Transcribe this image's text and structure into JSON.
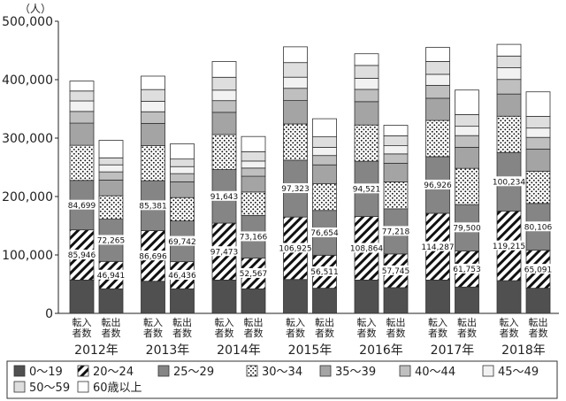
{
  "chart_data": {
    "type": "bar",
    "stacked": true,
    "unit_label": "（人）",
    "ylim": [
      0,
      500000
    ],
    "yticks": [
      "0",
      "100,000",
      "200,000",
      "300,000",
      "400,000",
      "500,000"
    ],
    "bar_labels": {
      "in": [
        "転入",
        "者数"
      ],
      "out": [
        "転出",
        "者数"
      ]
    },
    "years": [
      "2012年",
      "2013年",
      "2014年",
      "2015年",
      "2016年",
      "2017年",
      "2018年"
    ],
    "legend_position": "bottom",
    "series": [
      {
        "name": "0〜19",
        "fill": "#505050",
        "pattern": "solid"
      },
      {
        "name": "20〜24",
        "fill": "#ffffff",
        "pattern": "diagonal"
      },
      {
        "name": "25〜29",
        "fill": "#858585",
        "pattern": "solid"
      },
      {
        "name": "30〜34",
        "fill": "#ffffff",
        "pattern": "dots"
      },
      {
        "name": "35〜39",
        "fill": "#a4a4a4",
        "pattern": "solid"
      },
      {
        "name": "40〜44",
        "fill": "#bfbfbf",
        "pattern": "solid"
      },
      {
        "name": "45〜49",
        "fill": "#f2f2f2",
        "pattern": "solid"
      },
      {
        "name": "50〜59",
        "fill": "#dedede",
        "pattern": "solid"
      },
      {
        "name": "60歳以上",
        "fill": "#ffffff",
        "pattern": "solid"
      }
    ],
    "bars": [
      {
        "year": "2012年",
        "kind": "in",
        "values": [
          57000,
          85946,
          84699,
          60000,
          38000,
          20000,
          18000,
          17000,
          17000
        ],
        "labels": [
          "",
          "85,946",
          "84,699",
          "",
          "",
          "",
          "",
          "",
          ""
        ]
      },
      {
        "year": "2012年",
        "kind": "out",
        "values": [
          42000,
          46941,
          72265,
          40000,
          27000,
          14000,
          12000,
          12000,
          30000
        ],
        "labels": [
          "",
          "46,941",
          "72,265",
          "",
          "",
          "",
          "",
          "",
          ""
        ]
      },
      {
        "year": "2013年",
        "kind": "in",
        "values": [
          55000,
          86696,
          85381,
          60000,
          38000,
          20000,
          18000,
          20000,
          23000
        ],
        "labels": [
          "",
          "86,696",
          "85,381",
          "",
          "",
          "",
          "",
          "",
          ""
        ]
      },
      {
        "year": "2013年",
        "kind": "out",
        "values": [
          42000,
          46436,
          69742,
          40000,
          27000,
          14000,
          12000,
          13000,
          26000
        ],
        "labels": [
          "",
          "46,436",
          "69,742",
          "",
          "",
          "",
          "",
          "",
          ""
        ]
      },
      {
        "year": "2014年",
        "kind": "in",
        "values": [
          57000,
          97473,
          91643,
          60000,
          38000,
          20000,
          18000,
          22000,
          27000
        ],
        "labels": [
          "",
          "97,473",
          "91,643",
          "",
          "",
          "",
          "",
          "",
          ""
        ]
      },
      {
        "year": "2014年",
        "kind": "out",
        "values": [
          42000,
          52567,
          73166,
          40000,
          27000,
          14000,
          12000,
          16000,
          26000
        ],
        "labels": [
          "",
          "52,567",
          "73,166",
          "",
          "",
          "",
          "",
          "",
          ""
        ]
      },
      {
        "year": "2015年",
        "kind": "in",
        "values": [
          58000,
          106925,
          97323,
          62000,
          40000,
          21000,
          19000,
          25000,
          27000
        ],
        "labels": [
          "",
          "106,925",
          "97,323",
          "",
          "",
          "",
          "",
          "",
          ""
        ]
      },
      {
        "year": "2015年",
        "kind": "out",
        "values": [
          43000,
          56511,
          76654,
          46000,
          32000,
          16000,
          14000,
          18000,
          31000
        ],
        "labels": [
          "",
          "56,511",
          "76,654",
          "",
          "",
          "",
          "",
          "",
          ""
        ]
      },
      {
        "year": "2016年",
        "kind": "in",
        "values": [
          57000,
          108864,
          94521,
          62000,
          40000,
          21000,
          19000,
          22000,
          20000
        ],
        "labels": [
          "",
          "108,864",
          "94,521",
          "",
          "",
          "",
          "",
          "",
          ""
        ]
      },
      {
        "year": "2016年",
        "kind": "out",
        "values": [
          44000,
          57745,
          77218,
          46000,
          32000,
          16000,
          14000,
          17000,
          18000
        ],
        "labels": [
          "",
          "57,745",
          "77,218",
          "",
          "",
          "",
          "",
          "",
          ""
        ]
      },
      {
        "year": "2017年",
        "kind": "in",
        "values": [
          57000,
          114287,
          96926,
          62000,
          38000,
          22000,
          19000,
          22000,
          24000
        ],
        "labels": [
          "",
          "114,287",
          "96,926",
          "",
          "",
          "",
          "",
          "",
          ""
        ]
      },
      {
        "year": "2017年",
        "kind": "out",
        "values": [
          45000,
          61753,
          79500,
          62000,
          36000,
          20000,
          16000,
          20000,
          42000
        ],
        "labels": [
          "",
          "61,753",
          "79,500",
          "",
          "",
          "",
          "",
          "",
          ""
        ]
      },
      {
        "year": "2018年",
        "kind": "in",
        "values": [
          56000,
          119215,
          100234,
          62000,
          38000,
          25000,
          20000,
          20000,
          20000
        ],
        "labels": [
          "",
          "119,215",
          "100,234",
          "",
          "",
          "",
          "",
          "",
          ""
        ]
      },
      {
        "year": "2018年",
        "kind": "out",
        "values": [
          43000,
          65091,
          80106,
          55000,
          38000,
          20000,
          16000,
          20000,
          42000
        ],
        "labels": [
          "",
          "65,091",
          "80,106",
          "",
          "",
          "",
          "",
          "",
          ""
        ]
      }
    ]
  }
}
